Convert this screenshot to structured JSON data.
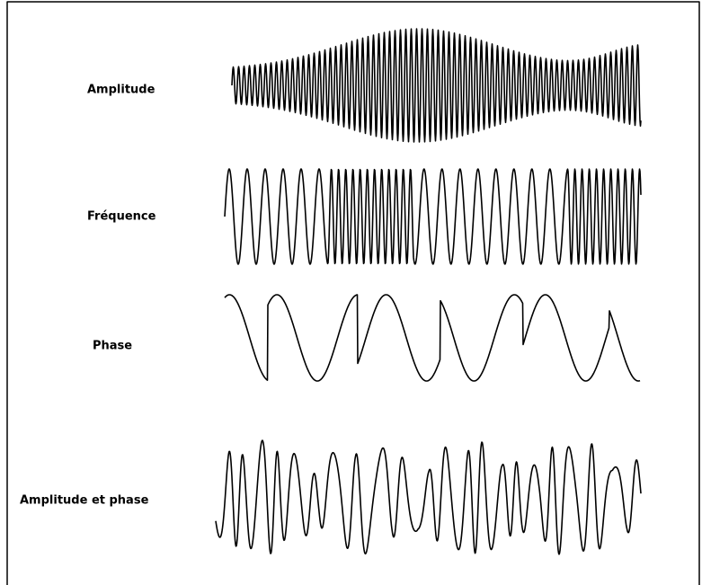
{
  "labels": [
    "Amplitude",
    "Fréquence",
    "Phase",
    "Amplitude et phase"
  ]
}
